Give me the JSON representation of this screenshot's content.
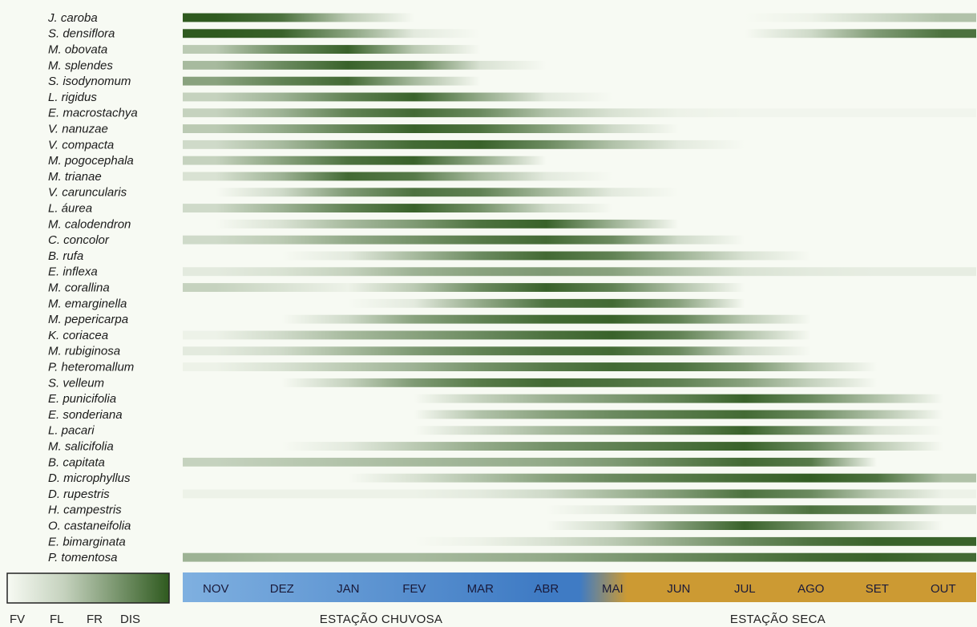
{
  "chart_data": {
    "type": "heatmap",
    "months": [
      "NOV",
      "DEZ",
      "JAN",
      "FEV",
      "MAR",
      "ABR",
      "MAI",
      "JUN",
      "JUL",
      "AGO",
      "SET",
      "OUT"
    ],
    "seasons": [
      {
        "label": "ESTAÇÃO CHUVOSA",
        "from": 0,
        "to": 6
      },
      {
        "label": "ESTAÇÃO SECA",
        "from": 6,
        "to": 12
      }
    ],
    "legend": {
      "labels": [
        "FV",
        "FL",
        "FR",
        "DIS"
      ]
    },
    "colors": {
      "dark": "#2f5a1f",
      "light": "#f7faf3",
      "rainy": "#7fb0e0",
      "rainy_dark": "#3f7bc4",
      "dry": "#cc9a33"
    },
    "rows_note": "profile = intensity 0..1 at each month (NOV..OUT)",
    "rows": [
      {
        "name": "J. caroba",
        "profile": [
          1,
          0.85,
          0.3,
          0,
          0,
          0,
          0,
          0,
          0,
          0.05,
          0.2,
          0.35
        ]
      },
      {
        "name": "S. densiflora",
        "profile": [
          1,
          0.95,
          0.55,
          0.1,
          0,
          0,
          0,
          0,
          0,
          0.2,
          0.6,
          0.85
        ]
      },
      {
        "name": "M. obovata",
        "profile": [
          0.3,
          0.7,
          0.95,
          0.3,
          0,
          0,
          0,
          0,
          0,
          0,
          0,
          0
        ]
      },
      {
        "name": "M. splendes",
        "profile": [
          0.4,
          0.7,
          0.95,
          0.75,
          0.15,
          0,
          0,
          0,
          0,
          0,
          0,
          0
        ]
      },
      {
        "name": "S. isodynomum",
        "profile": [
          0.55,
          0.75,
          0.9,
          0.4,
          0,
          0,
          0,
          0,
          0,
          0,
          0,
          0
        ]
      },
      {
        "name": "L. rigidus",
        "profile": [
          0.25,
          0.45,
          0.75,
          0.95,
          0.5,
          0.1,
          0,
          0,
          0,
          0,
          0,
          0
        ]
      },
      {
        "name": "E. macrostachya",
        "profile": [
          0.25,
          0.45,
          0.75,
          0.9,
          0.7,
          0.35,
          0.15,
          0.05,
          0.03,
          0.03,
          0.03,
          0.03
        ]
      },
      {
        "name": "V. nanuzae",
        "profile": [
          0.3,
          0.5,
          0.75,
          0.95,
          0.85,
          0.55,
          0.2,
          0,
          0,
          0,
          0,
          0
        ]
      },
      {
        "name": "V. compacta",
        "profile": [
          0.2,
          0.4,
          0.7,
          0.9,
          0.95,
          0.7,
          0.35,
          0.1,
          0,
          0,
          0,
          0
        ]
      },
      {
        "name": "M. pogocephala",
        "profile": [
          0.25,
          0.55,
          0.85,
          0.95,
          0.5,
          0,
          0,
          0,
          0,
          0,
          0,
          0
        ]
      },
      {
        "name": "M. trianae",
        "profile": [
          0.15,
          0.45,
          0.9,
          0.8,
          0.4,
          0.1,
          0,
          0,
          0,
          0,
          0,
          0
        ]
      },
      {
        "name": "V. caruncularis",
        "profile": [
          0,
          0.2,
          0.6,
          0.85,
          0.75,
          0.4,
          0.1,
          0,
          0,
          0,
          0,
          0
        ]
      },
      {
        "name": "L. áurea",
        "profile": [
          0.2,
          0.45,
          0.75,
          0.95,
          0.65,
          0.2,
          0,
          0,
          0,
          0,
          0,
          0
        ]
      },
      {
        "name": "M. calodendron",
        "profile": [
          0,
          0.15,
          0.4,
          0.6,
          0.85,
          0.95,
          0.45,
          0,
          0,
          0,
          0,
          0
        ]
      },
      {
        "name": "C. concolor",
        "profile": [
          0.2,
          0.3,
          0.5,
          0.65,
          0.8,
          0.9,
          0.7,
          0.2,
          0,
          0,
          0,
          0
        ]
      },
      {
        "name": "B. rufa",
        "profile": [
          0,
          0,
          0.1,
          0.4,
          0.7,
          0.9,
          0.75,
          0.45,
          0.15,
          0,
          0,
          0
        ]
      },
      {
        "name": "E. inflexa",
        "profile": [
          0.1,
          0.15,
          0.25,
          0.45,
          0.55,
          0.6,
          0.55,
          0.35,
          0.15,
          0.1,
          0.08,
          0.08
        ]
      },
      {
        "name": "M. corallina",
        "profile": [
          0.25,
          0.15,
          0.05,
          0.3,
          0.7,
          0.95,
          0.75,
          0.35,
          0,
          0,
          0,
          0
        ]
      },
      {
        "name": "M. emarginella",
        "profile": [
          0,
          0,
          0,
          0.1,
          0.5,
          0.85,
          0.9,
          0.55,
          0,
          0,
          0,
          0
        ]
      },
      {
        "name": "M. pepericarpa",
        "profile": [
          0,
          0,
          0.2,
          0.55,
          0.75,
          0.9,
          0.95,
          0.75,
          0.3,
          0,
          0,
          0
        ]
      },
      {
        "name": "K. coriacea",
        "profile": [
          0.05,
          0.2,
          0.4,
          0.55,
          0.7,
          0.85,
          0.95,
          0.75,
          0.35,
          0,
          0,
          0
        ]
      },
      {
        "name": "M. rubiginosa",
        "profile": [
          0.1,
          0.2,
          0.4,
          0.6,
          0.75,
          0.85,
          0.9,
          0.7,
          0.2,
          0,
          0,
          0
        ]
      },
      {
        "name": "P. heteromallum",
        "profile": [
          0.05,
          0.15,
          0.3,
          0.45,
          0.65,
          0.8,
          0.9,
          0.85,
          0.65,
          0.25,
          0,
          0
        ]
      },
      {
        "name": "S. velleum",
        "profile": [
          0,
          0,
          0.25,
          0.6,
          0.8,
          0.9,
          0.85,
          0.75,
          0.55,
          0.25,
          0,
          0
        ]
      },
      {
        "name": "E. punicifolia",
        "profile": [
          0,
          0,
          0,
          0,
          0.25,
          0.45,
          0.6,
          0.75,
          0.95,
          0.7,
          0.35,
          0
        ]
      },
      {
        "name": "E. sonderiana",
        "profile": [
          0,
          0,
          0,
          0,
          0.35,
          0.55,
          0.7,
          0.8,
          0.9,
          0.7,
          0.35,
          0
        ]
      },
      {
        "name": "L. pacari",
        "profile": [
          0,
          0,
          0,
          0,
          0.2,
          0.4,
          0.55,
          0.75,
          0.95,
          0.6,
          0.15,
          0
        ]
      },
      {
        "name": "M. salicifolia",
        "profile": [
          0,
          0,
          0.1,
          0.3,
          0.5,
          0.65,
          0.75,
          0.85,
          0.95,
          0.7,
          0.3,
          0
        ]
      },
      {
        "name": "B. capitata",
        "profile": [
          0.25,
          0.3,
          0.35,
          0.4,
          0.45,
          0.5,
          0.6,
          0.75,
          0.9,
          0.8,
          0,
          0
        ]
      },
      {
        "name": "D. microphyllus",
        "profile": [
          0,
          0,
          0,
          0.15,
          0.35,
          0.55,
          0.7,
          0.8,
          0.9,
          0.98,
          0.85,
          0.35
        ]
      },
      {
        "name": "D. rupestris",
        "profile": [
          0.05,
          0.05,
          0.05,
          0.05,
          0.1,
          0.2,
          0.4,
          0.6,
          0.85,
          0.7,
          0.3,
          0.05
        ]
      },
      {
        "name": "H. campestris",
        "profile": [
          0,
          0,
          0,
          0,
          0,
          0,
          0.1,
          0.35,
          0.6,
          0.85,
          0.7,
          0.2
        ]
      },
      {
        "name": "O. castaneifolia",
        "profile": [
          0,
          0,
          0,
          0,
          0,
          0,
          0.2,
          0.6,
          0.95,
          0.65,
          0.3,
          0
        ]
      },
      {
        "name": "E. bimarginata",
        "profile": [
          0,
          0,
          0,
          0,
          0.05,
          0.15,
          0.3,
          0.5,
          0.7,
          0.85,
          0.95,
          0.95
        ]
      },
      {
        "name": "P. tomentosa",
        "profile": [
          0.45,
          0.4,
          0.4,
          0.4,
          0.45,
          0.5,
          0.6,
          0.7,
          0.8,
          0.9,
          0.95,
          0.9
        ]
      }
    ]
  }
}
